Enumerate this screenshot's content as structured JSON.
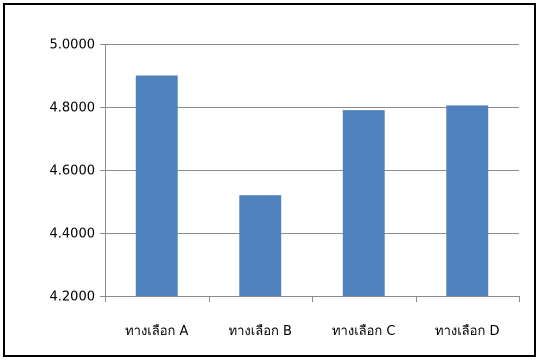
{
  "chart_data": {
    "type": "bar",
    "categories": [
      "ทางเลือก A",
      "ทางเลือก B",
      "ทางเลือก C",
      "ทางเลือก D"
    ],
    "values": [
      4.9,
      4.52,
      4.79,
      4.805
    ],
    "y_ticks": [
      "5.0000",
      "4.8000",
      "4.6000",
      "4.4000",
      "4.2000"
    ],
    "ylim": [
      4.2,
      5.0
    ],
    "y_tick_values": [
      5.0,
      4.8,
      4.6,
      4.4,
      4.2
    ],
    "title": "",
    "xlabel": "",
    "ylabel": "",
    "grid": true,
    "legend": "none",
    "bar_color": "#4f81bd",
    "grid_color": "#8c8c8c",
    "axis_color": "#8c8c8c"
  }
}
